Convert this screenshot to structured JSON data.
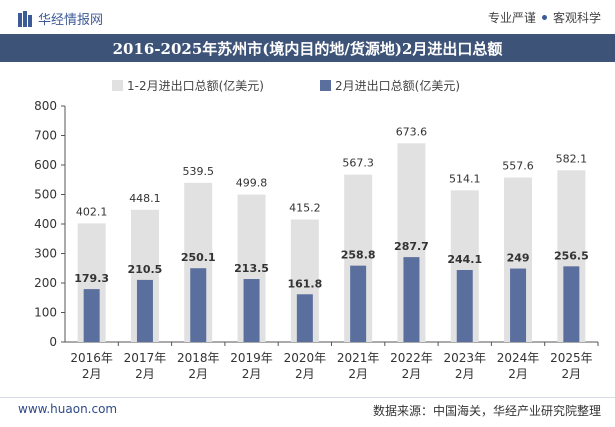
{
  "header": {
    "brand": "华经情报网",
    "tagline_left": "专业严谨",
    "tagline_right": "客观科学",
    "brand_color": "#3d5a98"
  },
  "footer": {
    "website": "www.huaon.com",
    "source": "数据来源：中国海关，华经产业研究院整理"
  },
  "colors": {
    "title_bg": "#3d5377",
    "series_total": "#e1e1e1",
    "series_feb": "#5b6f9e"
  },
  "chart_data": {
    "type": "bar",
    "title": "2016-2025年苏州市(境内目的地/货源地)2月进出口总额",
    "categories": [
      "2016年2月",
      "2017年2月",
      "2018年2月",
      "2019年2月",
      "2020年2月",
      "2021年2月",
      "2022年2月",
      "2023年2月",
      "2024年2月",
      "2025年2月"
    ],
    "category_lines": [
      [
        "2016年",
        "2月"
      ],
      [
        "2017年",
        "2月"
      ],
      [
        "2018年",
        "2月"
      ],
      [
        "2019年",
        "2月"
      ],
      [
        "2020年",
        "2月"
      ],
      [
        "2021年",
        "2月"
      ],
      [
        "2022年",
        "2月"
      ],
      [
        "2023年",
        "2月"
      ],
      [
        "2024年",
        "2月"
      ],
      [
        "2025年",
        "2月"
      ]
    ],
    "series": [
      {
        "name": "1-2月进出口总额(亿美元)",
        "values": [
          402.1,
          448.1,
          539.5,
          499.8,
          415.2,
          567.3,
          673.6,
          514.1,
          557.6,
          582.1
        ]
      },
      {
        "name": "2月进出口总额(亿美元)",
        "values": [
          179.3,
          210.5,
          250.1,
          213.5,
          161.8,
          258.8,
          287.7,
          244.1,
          249,
          256.5
        ]
      }
    ],
    "ylim": [
      0,
      800
    ],
    "yticks": [
      0,
      100,
      200,
      300,
      400,
      500,
      600,
      700,
      800
    ],
    "xlabel": "",
    "ylabel": "",
    "legend_position": "top-left",
    "grid": false
  }
}
